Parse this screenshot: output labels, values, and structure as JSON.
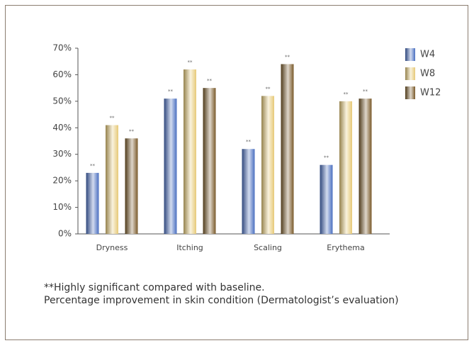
{
  "chart_data": {
    "type": "bar",
    "categories": [
      "Dryness",
      "Itching",
      "Scaling",
      "Erythema"
    ],
    "series": [
      {
        "name": "W4",
        "color": "#4a6fc0",
        "values": [
          23,
          51,
          32,
          26
        ],
        "labels": [
          "**",
          "**",
          "**",
          "**"
        ]
      },
      {
        "name": "W8",
        "color": "#e6c978",
        "values": [
          41,
          62,
          52,
          50
        ],
        "labels": [
          "**",
          "**",
          "**",
          "**"
        ]
      },
      {
        "name": "W12",
        "color": "#7a5a2a",
        "values": [
          36,
          55,
          64,
          51
        ],
        "labels": [
          "**",
          "**",
          "**",
          "**"
        ]
      }
    ],
    "ylim": [
      0,
      70
    ],
    "yticks": [
      {
        "value": 0,
        "label": "0%"
      },
      {
        "value": 10,
        "label": "10%"
      },
      {
        "value": 20,
        "label": "20%"
      },
      {
        "value": 30,
        "label": "30%"
      },
      {
        "value": 40,
        "label": "40%"
      },
      {
        "value": 50,
        "label": "50%"
      },
      {
        "value": 60,
        "label": "60%"
      },
      {
        "value": 70,
        "label": "70%"
      }
    ],
    "legend": "top-right",
    "notes": [
      "**Highly significant compared with baseline.",
      "Percentage improvement in skin condition (Dermatologist’s evaluation)"
    ]
  }
}
